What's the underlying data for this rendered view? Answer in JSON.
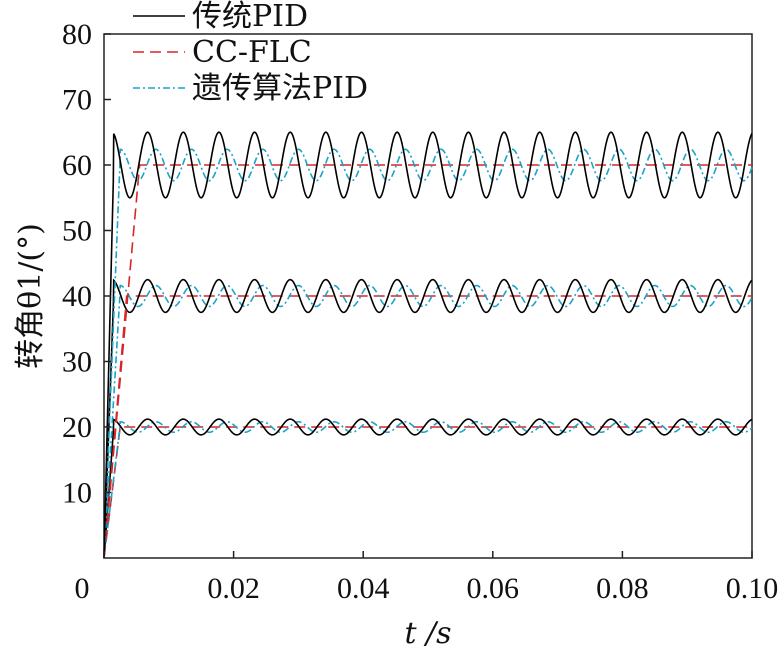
{
  "chart_data": {
    "type": "line",
    "xlabel": "t /s",
    "ylabel": "转角θ1/(°)",
    "xlim": [
      0,
      0.1
    ],
    "ylim": [
      0,
      80
    ],
    "x_ticks": [
      "0",
      "0.02",
      "0.04",
      "0.06",
      "0.08",
      "0.10"
    ],
    "y_ticks": [
      "10",
      "20",
      "30",
      "40",
      "50",
      "60",
      "70",
      "80"
    ],
    "grid": false,
    "legend_position": "top-left",
    "setpoints": [
      20,
      40,
      60
    ],
    "series": [
      {
        "name": "传统PID",
        "color": "#000000",
        "style": "solid",
        "description_values": {
          "rise_time_s": 0.0015,
          "oscillation_period_s": 0.0055,
          "amplitudes": {
            "20": 1.2,
            "40": 2.5,
            "60": 5.0
          }
        }
      },
      {
        "name": "CC-FLC",
        "color": "#d62728",
        "style": "dashed",
        "description_values": {
          "settle_time_s": {
            "20": 0.0025,
            "40": 0.0035,
            "60": 0.0055
          },
          "amplitudes": {
            "20": 0,
            "40": 0,
            "60": 0
          }
        }
      },
      {
        "name": "遗传算法PID",
        "color": "#1aa3c8",
        "style": "dashdot",
        "description_values": {
          "rise_time_s": 0.0025,
          "oscillation_period_s": 0.0055,
          "amplitudes": {
            "20": 0.8,
            "40": 1.6,
            "60": 2.4
          }
        }
      }
    ]
  }
}
